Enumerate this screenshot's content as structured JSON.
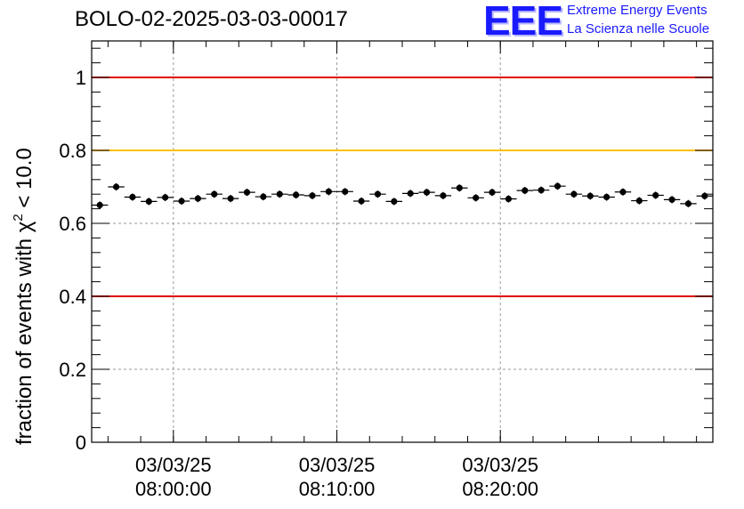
{
  "title": "BOLO-02-2025-03-03-00017",
  "logo": {
    "mark": "EEE",
    "line1": "Extreme Energy Events",
    "line2": "La Scienza nelle Scuole"
  },
  "chart_data": {
    "type": "scatter",
    "ylabel_prefix": "fraction of events with ",
    "ylabel_symbol": "χ",
    "ylabel_sup": "2",
    "ylabel_suffix": " < 10.0",
    "ylim": [
      0,
      1.1
    ],
    "yticks": [
      0,
      0.2,
      0.4,
      0.6,
      0.8,
      1
    ],
    "yticklabels": [
      "0",
      "0.2",
      "0.4",
      "0.6",
      "0.8",
      "1"
    ],
    "xlim": [
      "07:55:00",
      "08:33:00"
    ],
    "xticks": [
      {
        "t": "08:00:00",
        "date": "03/03/25",
        "time": "08:00:00"
      },
      {
        "t": "08:10:00",
        "date": "03/03/25",
        "time": "08:10:00"
      },
      {
        "t": "08:20:00",
        "date": "03/03/25",
        "time": "08:20:00"
      }
    ],
    "grid": true,
    "reference_lines": [
      {
        "y": 1.0,
        "color": "#e00000"
      },
      {
        "y": 0.8,
        "color": "#ffc000"
      },
      {
        "y": 0.4,
        "color": "#e00000"
      }
    ],
    "series": [
      {
        "marker_color": "#000000",
        "x": [
          "07:55:30",
          "07:56:30",
          "07:57:30",
          "07:58:30",
          "07:59:30",
          "08:00:30",
          "08:01:30",
          "08:02:30",
          "08:03:30",
          "08:04:30",
          "08:05:30",
          "08:06:30",
          "08:07:30",
          "08:08:30",
          "08:09:30",
          "08:10:30",
          "08:11:30",
          "08:12:30",
          "08:13:30",
          "08:14:30",
          "08:15:30",
          "08:16:30",
          "08:17:30",
          "08:18:30",
          "08:19:30",
          "08:20:30",
          "08:21:30",
          "08:22:30",
          "08:23:30",
          "08:24:30",
          "08:25:30",
          "08:26:30",
          "08:27:30",
          "08:28:30",
          "08:29:30",
          "08:30:30",
          "08:31:30",
          "08:32:30"
        ],
        "y": [
          0.65,
          0.7,
          0.672,
          0.66,
          0.671,
          0.661,
          0.668,
          0.68,
          0.668,
          0.685,
          0.673,
          0.68,
          0.678,
          0.676,
          0.687,
          0.687,
          0.661,
          0.68,
          0.66,
          0.682,
          0.685,
          0.676,
          0.697,
          0.67,
          0.685,
          0.667,
          0.69,
          0.691,
          0.702,
          0.68,
          0.675,
          0.672,
          0.686,
          0.662,
          0.677,
          0.665,
          0.654,
          0.675
        ],
        "err": [
          0.01,
          0.01,
          0.01,
          0.01,
          0.01,
          0.01,
          0.01,
          0.01,
          0.01,
          0.01,
          0.01,
          0.01,
          0.01,
          0.01,
          0.01,
          0.01,
          0.01,
          0.01,
          0.01,
          0.01,
          0.01,
          0.01,
          0.01,
          0.01,
          0.01,
          0.01,
          0.01,
          0.01,
          0.01,
          0.01,
          0.01,
          0.01,
          0.01,
          0.01,
          0.01,
          0.01,
          0.01,
          0.01
        ]
      }
    ]
  }
}
